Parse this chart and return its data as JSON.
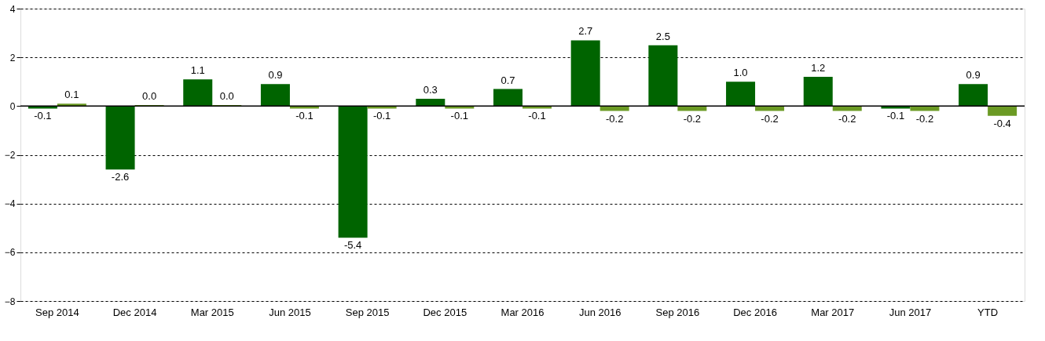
{
  "chart_data": {
    "type": "bar",
    "categories": [
      "Sep 2014",
      "Dec 2014",
      "Mar 2015",
      "Jun 2015",
      "Sep 2015",
      "Dec 2015",
      "Mar 2016",
      "Jun 2016",
      "Sep 2016",
      "Dec 2016",
      "Mar 2017",
      "Jun 2017",
      "YTD"
    ],
    "series": [
      {
        "color": "#006400",
        "values": [
          -0.1,
          -2.6,
          1.1,
          0.9,
          -5.4,
          0.3,
          0.7,
          2.7,
          2.5,
          1.0,
          1.2,
          -0.1,
          0.9
        ],
        "value_labels": [
          "-0.1",
          "-2.6",
          "1.1",
          "0.9",
          "-5.4",
          "0.3",
          "0.7",
          "2.7",
          "2.5",
          "1.0",
          "1.2",
          "-0.1",
          "0.9"
        ]
      },
      {
        "color": "#6b9a24",
        "values": [
          0.1,
          0.04,
          0.04,
          -0.1,
          -0.1,
          -0.1,
          -0.1,
          -0.2,
          -0.2,
          -0.2,
          -0.2,
          -0.2,
          -0.4
        ],
        "value_labels": [
          "0.1",
          "0.0",
          "0.0",
          "-0.1",
          "-0.1",
          "-0.1",
          "-0.1",
          "-0.2",
          "-0.2",
          "-0.2",
          "-0.2",
          "-0.2",
          "-0.4"
        ]
      }
    ],
    "ylim": [
      -8,
      4
    ],
    "yticks": [
      -8,
      -6,
      -4,
      -2,
      0,
      2,
      4
    ],
    "grid": "y",
    "legend": false,
    "ref_lines": [
      {
        "axis": "y",
        "value": 0,
        "color": "#000000"
      }
    ]
  }
}
